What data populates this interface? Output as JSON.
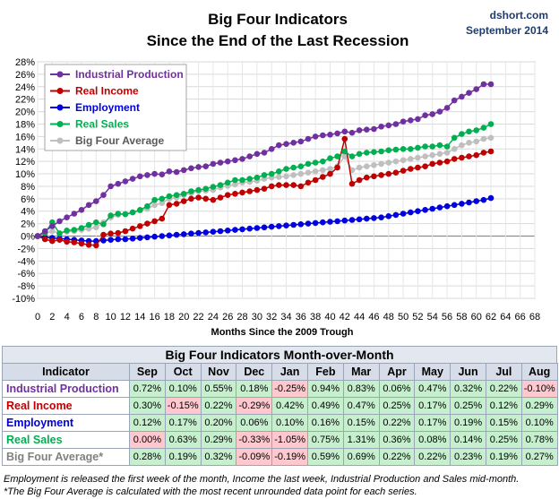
{
  "watermark": {
    "site": "dshort.com",
    "date": "September 2014"
  },
  "chart_data": {
    "type": "line",
    "title": "Big Four Indicators",
    "subtitle": "Since the End of the Last Recession",
    "xlabel": "Months Since the 2009 Trough",
    "ylabel": "",
    "xlim": [
      0,
      68
    ],
    "ylim": [
      -10,
      28
    ],
    "x_ticks": [
      0,
      2,
      4,
      6,
      8,
      10,
      12,
      14,
      16,
      18,
      20,
      22,
      24,
      26,
      28,
      30,
      32,
      34,
      36,
      38,
      40,
      42,
      44,
      46,
      48,
      50,
      52,
      54,
      56,
      58,
      60,
      62,
      64,
      66,
      68
    ],
    "y_ticks": [
      "-10%",
      "-8%",
      "-6%",
      "-4%",
      "-2%",
      "0%",
      "2%",
      "4%",
      "6%",
      "8%",
      "10%",
      "12%",
      "14%",
      "16%",
      "18%",
      "20%",
      "22%",
      "24%",
      "26%",
      "28%"
    ],
    "grid": true,
    "legend_position": "top-left",
    "series": [
      {
        "name": "Industrial Production",
        "color": "#7030a0",
        "values": [
          0,
          0.8,
          1.6,
          2.4,
          3.0,
          3.6,
          4.2,
          5.0,
          5.6,
          6.6,
          8.0,
          8.4,
          8.8,
          9.2,
          9.6,
          9.8,
          10.0,
          9.9,
          10.4,
          10.3,
          10.6,
          10.9,
          11.1,
          11.2,
          11.6,
          11.8,
          12.0,
          12.2,
          12.4,
          12.8,
          13.2,
          13.4,
          14.0,
          14.6,
          14.8,
          15.0,
          15.2,
          15.6,
          16.0,
          16.2,
          16.3,
          16.5,
          16.8,
          16.6,
          17.0,
          17.1,
          17.2,
          17.6,
          17.8,
          18.0,
          18.4,
          18.6,
          18.8,
          19.4,
          19.6,
          20.0,
          20.6,
          21.8,
          22.4,
          23.0,
          23.6,
          24.4,
          24.4
        ]
      },
      {
        "name": "Real Income",
        "color": "#c00000",
        "values": [
          0,
          -0.5,
          -0.8,
          -0.6,
          -0.9,
          -1.0,
          -1.2,
          -1.4,
          -1.5,
          0.2,
          0.4,
          0.5,
          0.8,
          1.2,
          1.6,
          2.0,
          2.4,
          2.8,
          5.0,
          5.2,
          5.6,
          6.0,
          6.2,
          6.0,
          5.8,
          6.2,
          6.6,
          6.8,
          7.0,
          7.2,
          7.4,
          7.6,
          8.0,
          8.2,
          8.2,
          8.2,
          8.0,
          8.6,
          9.0,
          9.5,
          10.0,
          11.0,
          15.6,
          8.4,
          9.0,
          9.4,
          9.6,
          9.8,
          10.0,
          10.2,
          10.5,
          10.8,
          11.0,
          11.2,
          11.6,
          11.8,
          12.0,
          12.4,
          12.6,
          12.8,
          13.0,
          13.4,
          13.6
        ]
      },
      {
        "name": "Employment",
        "color": "#0000e0",
        "values": [
          0,
          -0.2,
          -0.3,
          -0.4,
          -0.5,
          -0.6,
          -0.7,
          -0.8,
          -0.8,
          -0.7,
          -0.6,
          -0.5,
          -0.5,
          -0.4,
          -0.3,
          -0.2,
          -0.1,
          0,
          0.1,
          0.2,
          0.3,
          0.4,
          0.5,
          0.6,
          0.7,
          0.8,
          0.9,
          1.0,
          1.1,
          1.2,
          1.3,
          1.4,
          1.5,
          1.6,
          1.7,
          1.8,
          1.9,
          2.0,
          2.1,
          2.2,
          2.3,
          2.4,
          2.5,
          2.6,
          2.7,
          2.8,
          2.9,
          3.0,
          3.2,
          3.4,
          3.6,
          3.8,
          4.0,
          4.2,
          4.4,
          4.6,
          4.8,
          5.0,
          5.2,
          5.4,
          5.6,
          5.8,
          6.1
        ]
      },
      {
        "name": "Real Sales",
        "color": "#00b050",
        "values": [
          0,
          0.5,
          2.2,
          0.4,
          0.9,
          1.0,
          1.3,
          1.8,
          2.2,
          1.9,
          3.3,
          3.6,
          3.5,
          3.8,
          4.2,
          4.8,
          5.8,
          6.0,
          6.4,
          6.6,
          6.8,
          7.2,
          7.4,
          7.6,
          7.9,
          8.2,
          8.6,
          9.0,
          9.0,
          9.2,
          9.4,
          9.8,
          10.0,
          10.4,
          10.8,
          11.0,
          11.2,
          11.6,
          11.8,
          12.0,
          12.5,
          12.8,
          13.6,
          12.8,
          13.2,
          13.4,
          13.5,
          13.6,
          13.8,
          13.9,
          14.0,
          14.0,
          14.2,
          14.4,
          14.4,
          14.6,
          14.4,
          15.8,
          16.4,
          16.8,
          17.0,
          17.4,
          18.0
        ]
      },
      {
        "name": "Big Four Average",
        "color": "#bfbfbf",
        "values": [
          0,
          0.5,
          0.8,
          0.5,
          0.7,
          0.8,
          1.0,
          1.2,
          1.4,
          2.2,
          3.0,
          3.4,
          3.6,
          3.8,
          4.1,
          4.4,
          5.0,
          5.3,
          6.0,
          6.2,
          6.6,
          6.9,
          7.2,
          7.3,
          7.4,
          7.8,
          8.1,
          8.3,
          8.6,
          8.7,
          8.9,
          9.2,
          9.4,
          9.5,
          9.6,
          9.8,
          10.0,
          10.2,
          10.4,
          10.6,
          10.8,
          11.2,
          12.8,
          10.6,
          11.0,
          11.2,
          11.4,
          11.6,
          11.8,
          12.0,
          12.2,
          12.4,
          12.6,
          12.8,
          13.0,
          13.2,
          13.4,
          14.0,
          14.6,
          15.0,
          15.2,
          15.6,
          15.8
        ]
      }
    ]
  },
  "table": {
    "title": "Big Four Indicators Month-over-Month",
    "header_label": "Indicator",
    "months": [
      "Sep",
      "Oct",
      "Nov",
      "Dec",
      "Jan",
      "Feb",
      "Mar",
      "Apr",
      "May",
      "Jun",
      "Jul",
      "Aug"
    ],
    "rows": [
      {
        "label": "Industrial Production",
        "color": "#7030a0",
        "values": [
          "0.72%",
          "0.10%",
          "0.55%",
          "0.18%",
          "-0.25%",
          "0.94%",
          "0.83%",
          "0.06%",
          "0.47%",
          "0.32%",
          "0.22%",
          "-0.10%"
        ]
      },
      {
        "label": "Real Income",
        "color": "#c00000",
        "values": [
          "0.30%",
          "-0.15%",
          "0.22%",
          "-0.29%",
          "0.42%",
          "0.49%",
          "0.47%",
          "0.25%",
          "0.17%",
          "0.25%",
          "0.12%",
          "0.29%"
        ]
      },
      {
        "label": "Employment",
        "color": "#0000e0",
        "values": [
          "0.12%",
          "0.17%",
          "0.20%",
          "0.06%",
          "0.10%",
          "0.16%",
          "0.15%",
          "0.22%",
          "0.17%",
          "0.19%",
          "0.15%",
          "0.10%"
        ]
      },
      {
        "label": "Real Sales",
        "color": "#00b050",
        "values": [
          "0.00%",
          "0.63%",
          "0.29%",
          "-0.33%",
          "-1.05%",
          "0.75%",
          "1.31%",
          "0.36%",
          "0.08%",
          "0.14%",
          "0.25%",
          "0.78%"
        ]
      },
      {
        "label": "Big Four Average*",
        "color": "#808080",
        "values": [
          "0.28%",
          "0.19%",
          "0.32%",
          "-0.09%",
          "-0.19%",
          "0.59%",
          "0.69%",
          "0.22%",
          "0.22%",
          "0.23%",
          "0.19%",
          "0.27%"
        ]
      }
    ]
  },
  "notes": [
    "Employment is released the first week of the month, Income the last week, Industrial Production and Sales mid-month.",
    "*The Big Four Average is calculated with the most recent  unrounded data point for each series."
  ]
}
